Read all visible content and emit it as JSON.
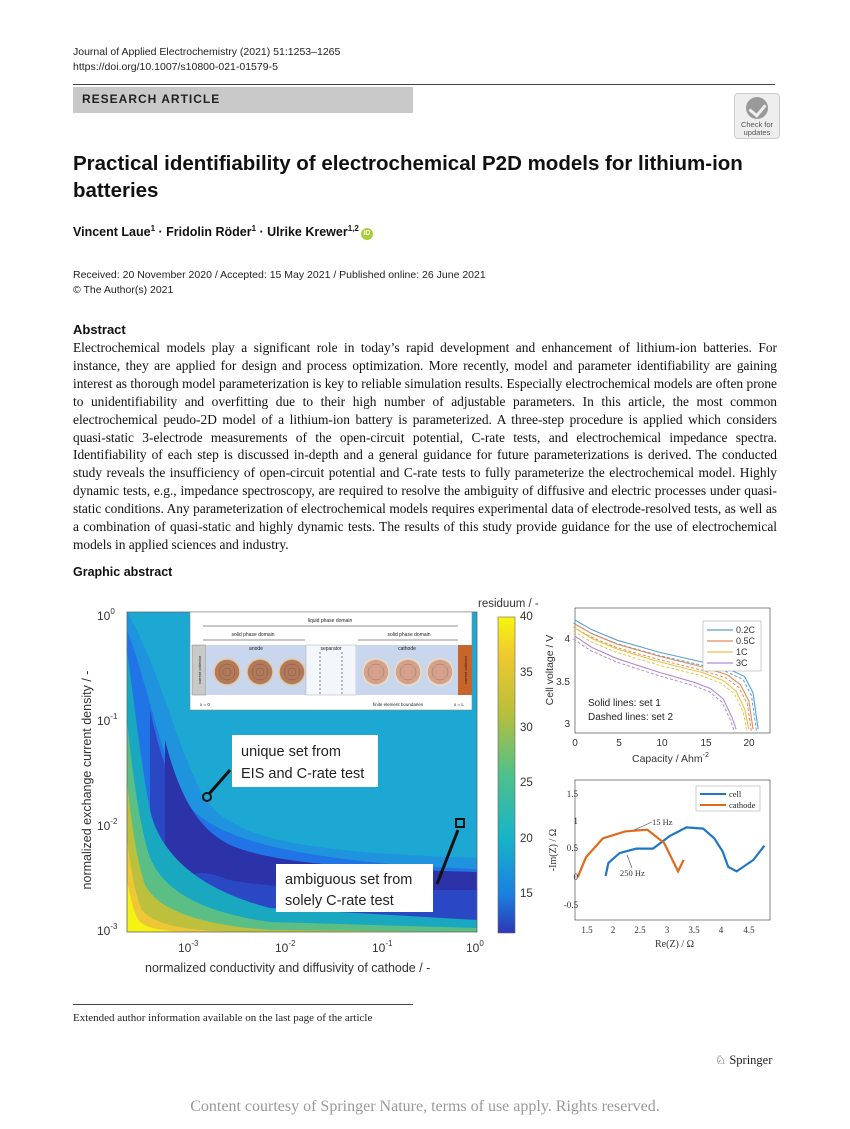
{
  "header": {
    "journal": "Journal of Applied Electrochemistry (2021) 51:1253–1265",
    "doi": "https://doi.org/10.1007/s10800-021-01579-5",
    "article_type": "RESEARCH ARTICLE",
    "check_badge": "Check for updates"
  },
  "title": "Practical identifiability of electrochemical P2D models for lithium-ion batteries",
  "authors": [
    {
      "name": "Vincent Laue",
      "aff": "1"
    },
    {
      "name": "Fridolin Röder",
      "aff": "1"
    },
    {
      "name": "Ulrike Krewer",
      "aff": "1,2"
    }
  ],
  "author_sep": " · ",
  "dates": {
    "line1": "Received: 20 November 2020 / Accepted: 15 May 2021 / Published online: 26 June 2021",
    "line2": "© The Author(s) 2021"
  },
  "abstract": {
    "heading": "Abstract",
    "text": "Electrochemical models play a significant role in today’s rapid development and enhancement of lithium-ion batteries. For instance, they are applied for design and process optimization. More recently, model and parameter identifiability are gaining interest as thorough model parameterization is key to reliable simulation results. Especially electrochemical models are often prone to unidentifiability and overfitting due to their high number of adjustable parameters. In this article, the most common electrochemical peudo-2D model of a lithium-ion battery is parameterized. A three-step procedure is applied which considers quasi-static 3-electrode measurements of the open-circuit potential, C-rate tests, and electrochemical impedance spectra. Identifiability of each step is discussed in-depth and a general guidance for future parameterizations is derived. The conducted study reveals the insufficiency of open-circuit potential and C-rate tests to fully parameterize the electrochemical model. Highly dynamic tests, e.g., impedance spectroscopy, are required to resolve the ambiguity of diffusive and electric processes under quasi-static conditions. Any parameterization of electrochemical models requires experimental data of electrode-resolved tests, as well as a combination of quasi-static and highly dynamic tests. The results of this study provide guidance for the use of electrochemical models in applied sciences and industry."
  },
  "graphic_abstract": {
    "heading": "Graphic abstract",
    "heatmap": {
      "colorbar_title": "residuum / -",
      "colorbar_ticks": [
        "40",
        "35",
        "30",
        "25",
        "20",
        "15"
      ],
      "ylabel": "normalized exchange current density / -",
      "xlabel": "normalized conductivity and diffusivity of cathode / -",
      "inset": {
        "liquid": "liquid phase domain",
        "solid_left": "solid phase domain",
        "solid_right": "solid phase domain",
        "anode": "anode",
        "separator": "separator",
        "cathode": "cathode",
        "cc_left": "current collector",
        "cc_right": "current collector",
        "fe": "finite element boundaries",
        "x0": "x = 0",
        "xL": "x = L"
      },
      "callout_unique": [
        "unique set from",
        "EIS and C-rate test"
      ],
      "callout_ambiguous": [
        "ambiguous set from",
        "solely C-rate test"
      ]
    },
    "crate": {
      "ylabel": "Cell voltage / V",
      "xlabel": "Capacity / Ahm",
      "xlabel_exp": "-2",
      "legend": [
        "0.2C",
        "0.5C",
        "1C",
        "3C"
      ],
      "colors": [
        "#5aa0d8",
        "#e58a5a",
        "#e8c44a",
        "#b48ad0"
      ],
      "note1": "Solid lines: set 1",
      "note2": "Dashed lines: set 2",
      "xticks": [
        "0",
        "5",
        "10",
        "15",
        "20"
      ],
      "yticks": [
        "4",
        "3.5",
        "3"
      ]
    },
    "eis": {
      "ylabel": "-Im(Z) / Ω",
      "xlabel": "Re(Z) / Ω",
      "legend": [
        "cell",
        "cathode"
      ],
      "colors": [
        "#1f77c4",
        "#e06a1c"
      ],
      "ann_15": "15 Hz",
      "ann_250": "250 Hz",
      "xticks": [
        "1.5",
        "2",
        "2.5",
        "3",
        "3.5",
        "4",
        "4.5"
      ],
      "yticks": [
        "1.5",
        "1",
        "0.5",
        "0",
        "-0.5"
      ]
    }
  },
  "chart_data": [
    {
      "type": "heatmap",
      "xlabel": "normalized conductivity and diffusivity of cathode / -",
      "ylabel": "normalized exchange current density / -",
      "x_scale": "log",
      "y_scale": "log",
      "xlim": [
        0.0002,
        1
      ],
      "ylim": [
        0.0008,
        1
      ],
      "colorbar_label": "residuum / -",
      "colorbar_range": [
        12,
        40
      ],
      "markers": [
        {
          "label": "unique set from EIS and C-rate test",
          "x": 0.0014,
          "y": 0.022,
          "shape": "circle"
        },
        {
          "label": "ambiguous set from solely C-rate test",
          "x": 0.6,
          "y": 0.011,
          "shape": "square"
        }
      ]
    },
    {
      "type": "line",
      "xlabel": "Capacity / Ahm-2",
      "ylabel": "Cell voltage / V",
      "xlim": [
        0,
        23
      ],
      "ylim": [
        2.8,
        4.35
      ],
      "series": [
        {
          "name": "0.2C",
          "x": [
            0,
            2,
            5,
            10,
            15,
            18,
            20,
            21,
            21.6
          ],
          "y": [
            4.2,
            4.08,
            3.95,
            3.8,
            3.68,
            3.6,
            3.5,
            3.3,
            2.85
          ]
        },
        {
          "name": "0.5C",
          "x": [
            0,
            2,
            5,
            10,
            15,
            18,
            19.5,
            20.5,
            21
          ],
          "y": [
            4.15,
            4.03,
            3.9,
            3.75,
            3.62,
            3.52,
            3.4,
            3.2,
            2.85
          ]
        },
        {
          "name": "1C",
          "x": [
            0,
            2,
            5,
            10,
            15,
            17.5,
            19,
            20,
            20.5
          ],
          "y": [
            4.1,
            3.97,
            3.84,
            3.68,
            3.55,
            3.45,
            3.32,
            3.1,
            2.85
          ]
        },
        {
          "name": "3C",
          "x": [
            0,
            2,
            5,
            10,
            14,
            16,
            17.5,
            18.5,
            19
          ],
          "y": [
            4.0,
            3.86,
            3.72,
            3.55,
            3.43,
            3.35,
            3.22,
            3.0,
            2.85
          ]
        }
      ]
    },
    {
      "type": "line",
      "xlabel": "Re(Z) / Ω",
      "ylabel": "-Im(Z) / Ω",
      "xlim": [
        1.3,
        4.8
      ],
      "ylim": [
        -0.75,
        1.7
      ],
      "series": [
        {
          "name": "cell",
          "x": [
            1.85,
            1.9,
            2.1,
            2.4,
            2.7,
            3.0,
            3.3,
            3.6,
            3.8,
            3.95,
            4.05,
            4.2,
            4.5,
            4.7
          ],
          "y": [
            0.02,
            0.25,
            0.42,
            0.5,
            0.5,
            0.72,
            0.87,
            0.85,
            0.68,
            0.45,
            0.18,
            0.1,
            0.3,
            0.55
          ]
        },
        {
          "name": "cathode",
          "x": [
            1.35,
            1.5,
            1.8,
            2.2,
            2.6,
            2.9,
            3.05,
            3.15,
            3.25
          ],
          "y": [
            0.0,
            0.35,
            0.68,
            0.8,
            0.83,
            0.6,
            0.3,
            0.1,
            0.3
          ]
        }
      ]
    }
  ],
  "footnote": "Extended author information available on the last page of the article",
  "publisher": "Springer",
  "courtesy": "Content courtesy of Springer Nature, terms of use apply. Rights reserved."
}
